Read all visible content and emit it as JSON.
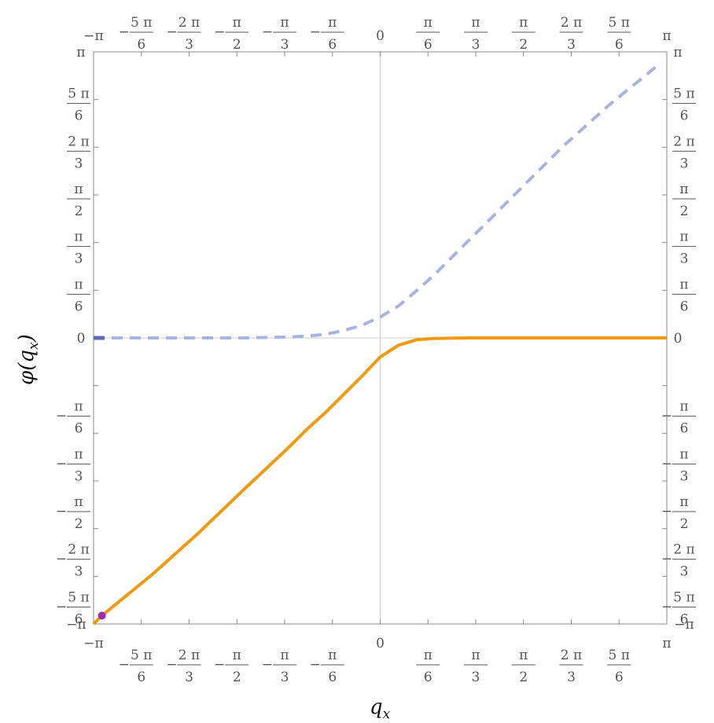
{
  "chart_data": {
    "type": "line",
    "title": "",
    "xlabel": "q",
    "xlabel_subscript": "x",
    "ylabel_main": "φ(q",
    "ylabel_subscript": "x",
    "ylabel_close": ")",
    "xlim": [
      -3.14159,
      3.14159
    ],
    "ylim": [
      -3.14159,
      3.14159
    ],
    "grid": false,
    "zero_lines": true,
    "ticks": [
      {
        "value": -3.14159,
        "num": "−π",
        "den": "",
        "neg": ""
      },
      {
        "value": -2.61799,
        "num": "5 π",
        "den": "6",
        "neg": "−"
      },
      {
        "value": -2.0944,
        "num": "2 π",
        "den": "3",
        "neg": "−"
      },
      {
        "value": -1.5708,
        "num": "π",
        "den": "2",
        "neg": "−"
      },
      {
        "value": -1.0472,
        "num": "π",
        "den": "3",
        "neg": "−"
      },
      {
        "value": -0.5236,
        "num": "π",
        "den": "6",
        "neg": "−"
      },
      {
        "value": 0,
        "num": "0",
        "den": "",
        "neg": ""
      },
      {
        "value": 0.5236,
        "num": "π",
        "den": "6",
        "neg": ""
      },
      {
        "value": 1.0472,
        "num": "π",
        "den": "3",
        "neg": ""
      },
      {
        "value": 1.5708,
        "num": "π",
        "den": "2",
        "neg": ""
      },
      {
        "value": 2.0944,
        "num": "2 π",
        "den": "3",
        "neg": ""
      },
      {
        "value": 2.61799,
        "num": "5 π",
        "den": "6",
        "neg": ""
      },
      {
        "value": 3.14159,
        "num": "π",
        "den": "",
        "neg": ""
      }
    ],
    "series": [
      {
        "style": "dashed",
        "color": "#A9B4DE",
        "x": [
          -3.142,
          -2.5,
          -2.0,
          -1.5,
          -1.0,
          -0.8,
          -0.6,
          -0.4,
          -0.2,
          0.0,
          0.2,
          0.4,
          0.6,
          0.8,
          1.0,
          1.3,
          1.6,
          2.0,
          2.5,
          3.05
        ],
        "y": [
          0.0,
          0.0,
          0.0,
          0.0,
          0.01,
          0.02,
          0.04,
          0.08,
          0.14,
          0.23,
          0.35,
          0.52,
          0.7,
          0.9,
          1.1,
          1.4,
          1.7,
          2.1,
          2.55,
          3.0
        ]
      },
      {
        "style": "solid",
        "color": "#EF9A10",
        "x": [
          -3.142,
          -3.05,
          -2.5,
          -2.0,
          -1.5,
          -1.0,
          -0.8,
          -0.6,
          -0.4,
          -0.2,
          0.0,
          0.2,
          0.4,
          0.6,
          0.8,
          1.0,
          1.5,
          2.0,
          2.5,
          3.142
        ],
        "y": [
          -3.142,
          -3.05,
          -2.6,
          -2.15,
          -1.67,
          -1.2,
          -1.0,
          -0.82,
          -0.62,
          -0.42,
          -0.21,
          -0.08,
          -0.02,
          -0.005,
          -0.002,
          0.0,
          0.0,
          0.0,
          0.0,
          0.0
        ]
      }
    ],
    "markers": [
      {
        "x": -3.05,
        "y": -3.05,
        "color": "#9B2DAE",
        "shape": "circle"
      },
      {
        "x": -3.142,
        "y": 0.0,
        "color": "#5B6BB5",
        "shape": "bar"
      }
    ]
  }
}
